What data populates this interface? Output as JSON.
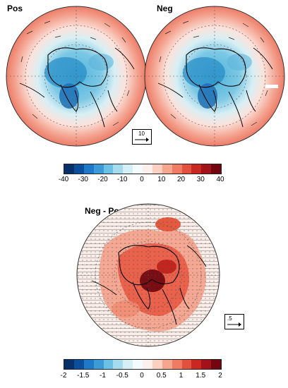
{
  "panels": {
    "pos": {
      "label": "Pos"
    },
    "neg": {
      "label": "Neg"
    },
    "diff": {
      "label": "Neg - Pos"
    }
  },
  "vector_refs": {
    "top": "10",
    "bottom": ".5"
  },
  "colorbars": {
    "top": {
      "labels": [
        "-40",
        "-30",
        "-20",
        "-10",
        "0",
        "10",
        "20",
        "30",
        "40"
      ],
      "colors": [
        "#08306b",
        "#0b4f9c",
        "#1f78c8",
        "#3c9ad6",
        "#6cc0e3",
        "#a5dced",
        "#d4f0f5",
        "#f3fbfc",
        "#fdf0ec",
        "#fbd0c1",
        "#f6a68e",
        "#ef7b63",
        "#e2513e",
        "#c8281f",
        "#a3121a",
        "#72050f"
      ]
    },
    "bottom": {
      "labels": [
        "-2",
        "-1.5",
        "-1",
        "-0.5",
        "0",
        "0.5",
        "1",
        "1.5",
        "2"
      ],
      "colors": [
        "#08306b",
        "#0b4f9c",
        "#1f78c8",
        "#3c9ad6",
        "#6cc0e3",
        "#a5dced",
        "#d4f0f5",
        "#f3fbfc",
        "#fdf0ec",
        "#fbd0c1",
        "#f6a68e",
        "#ef7b63",
        "#e2513e",
        "#c8281f",
        "#a3121a",
        "#72050f"
      ]
    }
  }
}
